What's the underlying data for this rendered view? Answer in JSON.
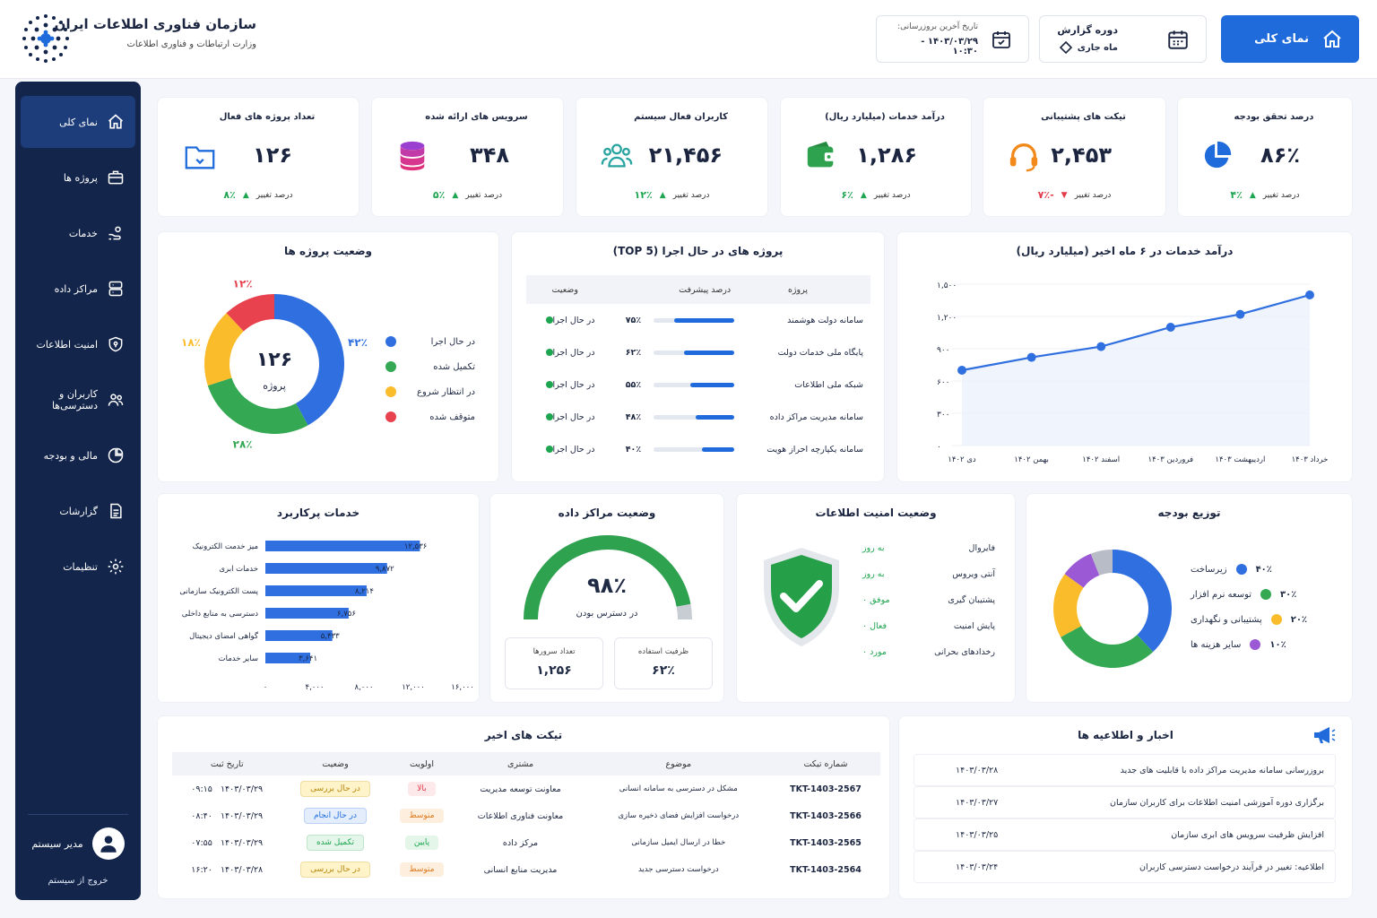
{
  "header": {
    "org_name": "سازمان فناوری اطلاعات ایران",
    "org_sub": "وزارت ارتباطات و فناوری اطلاعات",
    "overview_button": "نمای کلی",
    "report_period_label": "دوره گزارش",
    "report_period_value": "ماه جاری",
    "last_update_label": "تاریخ آخرین بروزرسانی:",
    "last_update_value": "۱۴۰۳/۰۳/۲۹ - ۱۰:۳۰"
  },
  "sidebar": {
    "items": [
      {
        "label": "نمای کلی",
        "icon": "home-icon"
      },
      {
        "label": "پروژه ها",
        "icon": "briefcase-icon"
      },
      {
        "label": "خدمات",
        "icon": "hand-service-icon"
      },
      {
        "label": "مراکز داده",
        "icon": "server-icon"
      },
      {
        "label": "امنیت اطلاعات",
        "icon": "shield-icon"
      },
      {
        "label": "کاربران و دسترسی‌ها",
        "icon": "users-icon"
      },
      {
        "label": "مالی و بودجه",
        "icon": "pie-icon"
      },
      {
        "label": "گزارشات",
        "icon": "document-icon"
      },
      {
        "label": "تنظیمات",
        "icon": "gear-icon"
      }
    ],
    "user_name": "مدیر سیستم",
    "logout": "خروج از سیستم"
  },
  "kpis": [
    {
      "title": "درصد تحقق بودجه",
      "value": "۸۶٪",
      "change_label": "درصد تغییر",
      "change": "۴٪",
      "trend": "up",
      "icon": "pie-chart-icon"
    },
    {
      "title": "تیکت های پشتیبانی",
      "value": "۲,۴۵۳",
      "change_label": "درصد تغییر",
      "change": "-۷٪",
      "trend": "down",
      "icon": "headset-icon"
    },
    {
      "title": "درآمد خدمات (میلیارد ریال)",
      "value": "۱,۲۸۶",
      "change_label": "درصد تغییر",
      "change": "۶٪",
      "trend": "up",
      "icon": "wallet-icon"
    },
    {
      "title": "کاربران فعال سیستم",
      "value": "۲۱,۴۵۶",
      "change_label": "درصد تغییر",
      "change": "۱۲٪",
      "trend": "up",
      "icon": "users-icon"
    },
    {
      "title": "سرویس های ارائه شده",
      "value": "۳۴۸",
      "change_label": "درصد تغییر",
      "change": "۵٪",
      "trend": "up",
      "icon": "database-icon"
    },
    {
      "title": "تعداد پروژه های فعال",
      "value": "۱۲۶",
      "change_label": "درصد تغییر",
      "change": "۸٪",
      "trend": "up",
      "icon": "folder-icon"
    }
  ],
  "project_status": {
    "title": "وضعیت پروژه ها",
    "center_value": "۱۲۶",
    "center_label": "پروژه",
    "colors": {
      "in_progress": "#2f6fdf",
      "done": "#34a853",
      "waiting": "#fbbc2c",
      "stopped": "#e8424f"
    },
    "chart_data": {
      "type": "pie",
      "categories": [
        "در حال اجرا",
        "تکمیل شده",
        "در انتظار شروع",
        "متوقف شده"
      ],
      "values": [
        42,
        28,
        18,
        12
      ],
      "value_labels": [
        "۴۲٪",
        "۲۸٪",
        "۱۸٪",
        "۱۲٪"
      ],
      "legend": "right"
    }
  },
  "top_projects": {
    "title": "پروژه های در حال اجرا (TOP 5)",
    "headers": {
      "project": "پروژه",
      "progress": "درصد پیشرفت",
      "status": "وضعیت"
    },
    "rows": [
      {
        "name": "سامانه دولت هوشمند",
        "progress": 75,
        "progress_label": "۷۵٪",
        "status": "در حال اجرا"
      },
      {
        "name": "پایگاه ملی خدمات دولت",
        "progress": 62,
        "progress_label": "۶۲٪",
        "status": "در حال اجرا"
      },
      {
        "name": "شبکه ملی اطلاعات",
        "progress": 55,
        "progress_label": "۵۵٪",
        "status": "در حال اجرا"
      },
      {
        "name": "سامانه مدیریت مراکز داده",
        "progress": 48,
        "progress_label": "۴۸٪",
        "status": "در حال اجرا"
      },
      {
        "name": "سامانه یکپارچه احراز هویت",
        "progress": 40,
        "progress_label": "۴۰٪",
        "status": "در حال اجرا"
      }
    ]
  },
  "revenue_chart": {
    "title": "درآمد خدمات در ۶ ماه اخیر (میلیارد ریال)",
    "chart_data": {
      "type": "line",
      "categories": [
        "دی ۱۴۰۲",
        "بهمن ۱۴۰۲",
        "اسفند ۱۴۰۲",
        "فروردین ۱۴۰۳",
        "اردیبهشت ۱۴۰۳",
        "خرداد ۱۴۰۳"
      ],
      "values": [
        700,
        820,
        920,
        1100,
        1220,
        1400
      ],
      "ylim": [
        0,
        1500
      ],
      "yticks": [
        0,
        300,
        600,
        900,
        1200,
        1500
      ],
      "ytick_labels": [
        "۰",
        "۳۰۰",
        "۶۰۰",
        "۹۰۰",
        "۱,۲۰۰",
        "۱,۵۰۰"
      ],
      "color": "#2f6fdf"
    }
  },
  "popular_services": {
    "title": "خدمات پرکاربرد",
    "chart_data": {
      "type": "bar",
      "orientation": "horizontal",
      "categories": [
        "میز خدمت الکترونیک",
        "خدمات ابری",
        "پست الکترونیک سازمانی",
        "دسترسی به منابع داخلی",
        "گواهی امضای دیجیتال",
        "سایر خدمات"
      ],
      "values": [
        12536,
        9872,
        8214,
        6756,
        5433,
        3641
      ],
      "value_labels": [
        "۱۲,۵۳۶",
        "۹,۸۷۲",
        "۸,۲۱۴",
        "۶,۷۵۶",
        "۵,۴۳۳",
        "۳,۶۴۱"
      ],
      "xlim": [
        0,
        16000
      ],
      "xticks": [
        0,
        4000,
        8000,
        12000,
        16000
      ],
      "xtick_labels": [
        "۰",
        "۴,۰۰۰",
        "۸,۰۰۰",
        "۱۲,۰۰۰",
        "۱۶,۰۰۰"
      ],
      "color": "#2f6fdf"
    }
  },
  "datacenter": {
    "title": "وضعیت مراکز داده",
    "availability": 98,
    "availability_label": "۹۸٪",
    "availability_caption": "در دسترس بودن",
    "server_count_label": "تعداد سرورها",
    "server_count": "۱,۲۵۶",
    "capacity_label": "ظرفیت استفاده",
    "capacity": "۶۲٪"
  },
  "security": {
    "title": "وضعیت امنیت اطلاعات",
    "rows": [
      {
        "label": "فایروال",
        "value": "به روز"
      },
      {
        "label": "آنتی ویروس",
        "value": "به روز"
      },
      {
        "label": "پشتیبان گیری",
        "value": "موفق ۰"
      },
      {
        "label": "پایش امنیت",
        "value": "فعال ۰"
      },
      {
        "label": "رخدادهای بحرانی",
        "value": "مورد ۰"
      }
    ]
  },
  "budget": {
    "title": "توزیع بودجه",
    "colors": [
      "#2f6fdf",
      "#34a853",
      "#fbbc2c",
      "#9b59d6",
      "#b8bcc6"
    ],
    "chart_data": {
      "type": "pie",
      "categories": [
        "زیرساخت",
        "توسعه نرم افزار",
        "پشتیبانی و نگهداری",
        "سایر هزینه ها"
      ],
      "values": [
        40,
        30,
        20,
        10
      ],
      "value_labels": [
        "۴۰٪",
        "۳۰٪",
        "۲۰٪",
        "۱۰٪"
      ],
      "legend": "right"
    }
  },
  "tickets": {
    "title": "تیکت های اخیر",
    "headers": [
      "شماره تیکت",
      "موضوع",
      "مشتری",
      "اولویت",
      "وضعیت",
      "تاریخ ثبت"
    ],
    "rows": [
      {
        "id": "TKT-1403-2567",
        "subject": "مشکل در دسترسی به سامانه انسانی",
        "customer": "معاونت توسعه مدیریت",
        "priority": "بالا",
        "priority_color": "#e23b4a",
        "priority_bg": "#fde8ea",
        "status": "در حال بررسی",
        "status_color": "#b7860b",
        "status_bg": "#fff3c9",
        "date": "۱۴۰۳/۰۳/۲۹   ۰۹:۱۵"
      },
      {
        "id": "TKT-1403-2566",
        "subject": "درخواست افزایش فضای ذخیره سازی",
        "customer": "معاونت فناوری اطلاعات",
        "priority": "متوسط",
        "priority_color": "#e07a1f",
        "priority_bg": "#fdeede",
        "status": "در حال انجام",
        "status_color": "#1f6bdc",
        "status_bg": "#e3edfc",
        "date": "۱۴۰۳/۰۳/۲۹   ۰۸:۴۰"
      },
      {
        "id": "TKT-1403-2565",
        "subject": "خطا در ارسال ایمیل سازمانی",
        "customer": "مرکز داده",
        "priority": "پایین",
        "priority_color": "#1ea54f",
        "priority_bg": "#e4f6ea",
        "status": "تکمیل شده",
        "status_color": "#1ea54f",
        "status_bg": "#e4f6ea",
        "date": "۱۴۰۳/۰۳/۲۹   ۰۷:۵۵"
      },
      {
        "id": "TKT-1403-2564",
        "subject": "درخواست دسترسی جدید",
        "customer": "مدیریت منابع انسانی",
        "priority": "متوسط",
        "priority_color": "#e07a1f",
        "priority_bg": "#fdeede",
        "status": "در حال بررسی",
        "status_color": "#b7860b",
        "status_bg": "#fff3c9",
        "date": "۱۴۰۳/۰۳/۲۸   ۱۶:۲۰"
      }
    ]
  },
  "news": {
    "title": "اخبار و اطلاعیه ها",
    "items": [
      {
        "text": "بروزرسانی سامانه مدیریت مراکز داده با قابلیت های جدید",
        "date": "۱۴۰۳/۰۳/۲۸"
      },
      {
        "text": "برگزاری دوره آموزشی امنیت اطلاعات برای کاربران سازمان",
        "date": "۱۴۰۳/۰۳/۲۷"
      },
      {
        "text": "افزایش ظرفیت سرویس های ابری سازمان",
        "date": "۱۴۰۳/۰۳/۲۵"
      },
      {
        "text": "اطلاعیه: تغییر در فرآیند درخواست دسترسی کاربران",
        "date": "۱۴۰۳/۰۳/۲۴"
      }
    ]
  }
}
